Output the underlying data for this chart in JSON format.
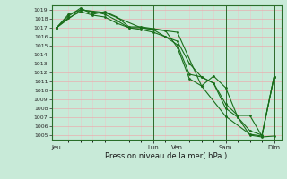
{
  "background_color": "#c8ead8",
  "grid_color_major": "#e8b0b0",
  "grid_color_minor": "#e8c8c8",
  "line_color": "#1a6e1a",
  "ylim": [
    1004.5,
    1019.5
  ],
  "yticks": [
    1005,
    1006,
    1007,
    1008,
    1009,
    1010,
    1011,
    1012,
    1013,
    1014,
    1015,
    1016,
    1017,
    1018,
    1019
  ],
  "xlabel": "Pression niveau de la mer( hPa )",
  "xtick_labels": [
    "Jeu",
    "Lun",
    "Ven",
    "Sam",
    "Dim"
  ],
  "xtick_positions": [
    0,
    40,
    50,
    70,
    90
  ],
  "xlim": [
    -2,
    93
  ],
  "line1_x": [
    0,
    5,
    10,
    15,
    20,
    25,
    30,
    35,
    40,
    45,
    50,
    55,
    60,
    65,
    70,
    75,
    80,
    85,
    90
  ],
  "line1_y": [
    1017.0,
    1018.3,
    1019.2,
    1018.5,
    1018.8,
    1018.2,
    1017.1,
    1017.1,
    1016.9,
    1016.7,
    1014.8,
    1011.3,
    1010.5,
    1011.6,
    1010.3,
    1007.0,
    1005.0,
    1004.8,
    1004.9
  ],
  "line2_x": [
    0,
    5,
    10,
    15,
    20,
    25,
    30,
    35,
    40,
    45,
    50,
    55,
    60,
    65,
    70,
    75,
    80,
    85,
    90
  ],
  "line2_y": [
    1017.0,
    1018.5,
    1019.0,
    1018.8,
    1018.5,
    1017.8,
    1017.0,
    1017.0,
    1016.8,
    1016.0,
    1015.1,
    1011.8,
    1011.5,
    1010.8,
    1008.0,
    1007.0,
    1005.5,
    1005.0,
    1011.5
  ],
  "line3_x": [
    0,
    5,
    10,
    15,
    20,
    25,
    30,
    35,
    40,
    45,
    50,
    55,
    60,
    65,
    70,
    75,
    80,
    85,
    90
  ],
  "line3_y": [
    1017.0,
    1018.1,
    1018.8,
    1018.4,
    1018.2,
    1017.5,
    1017.0,
    1016.8,
    1016.5,
    1016.0,
    1015.5,
    1013.0,
    1011.5,
    1010.8,
    1008.5,
    1007.2,
    1007.2,
    1004.9,
    1011.5
  ],
  "line4_x": [
    0,
    10,
    20,
    35,
    50,
    60,
    70,
    80,
    85,
    90
  ],
  "line4_y": [
    1017.0,
    1019.0,
    1018.7,
    1017.0,
    1016.5,
    1010.5,
    1007.1,
    1005.1,
    1004.9,
    1011.5
  ]
}
